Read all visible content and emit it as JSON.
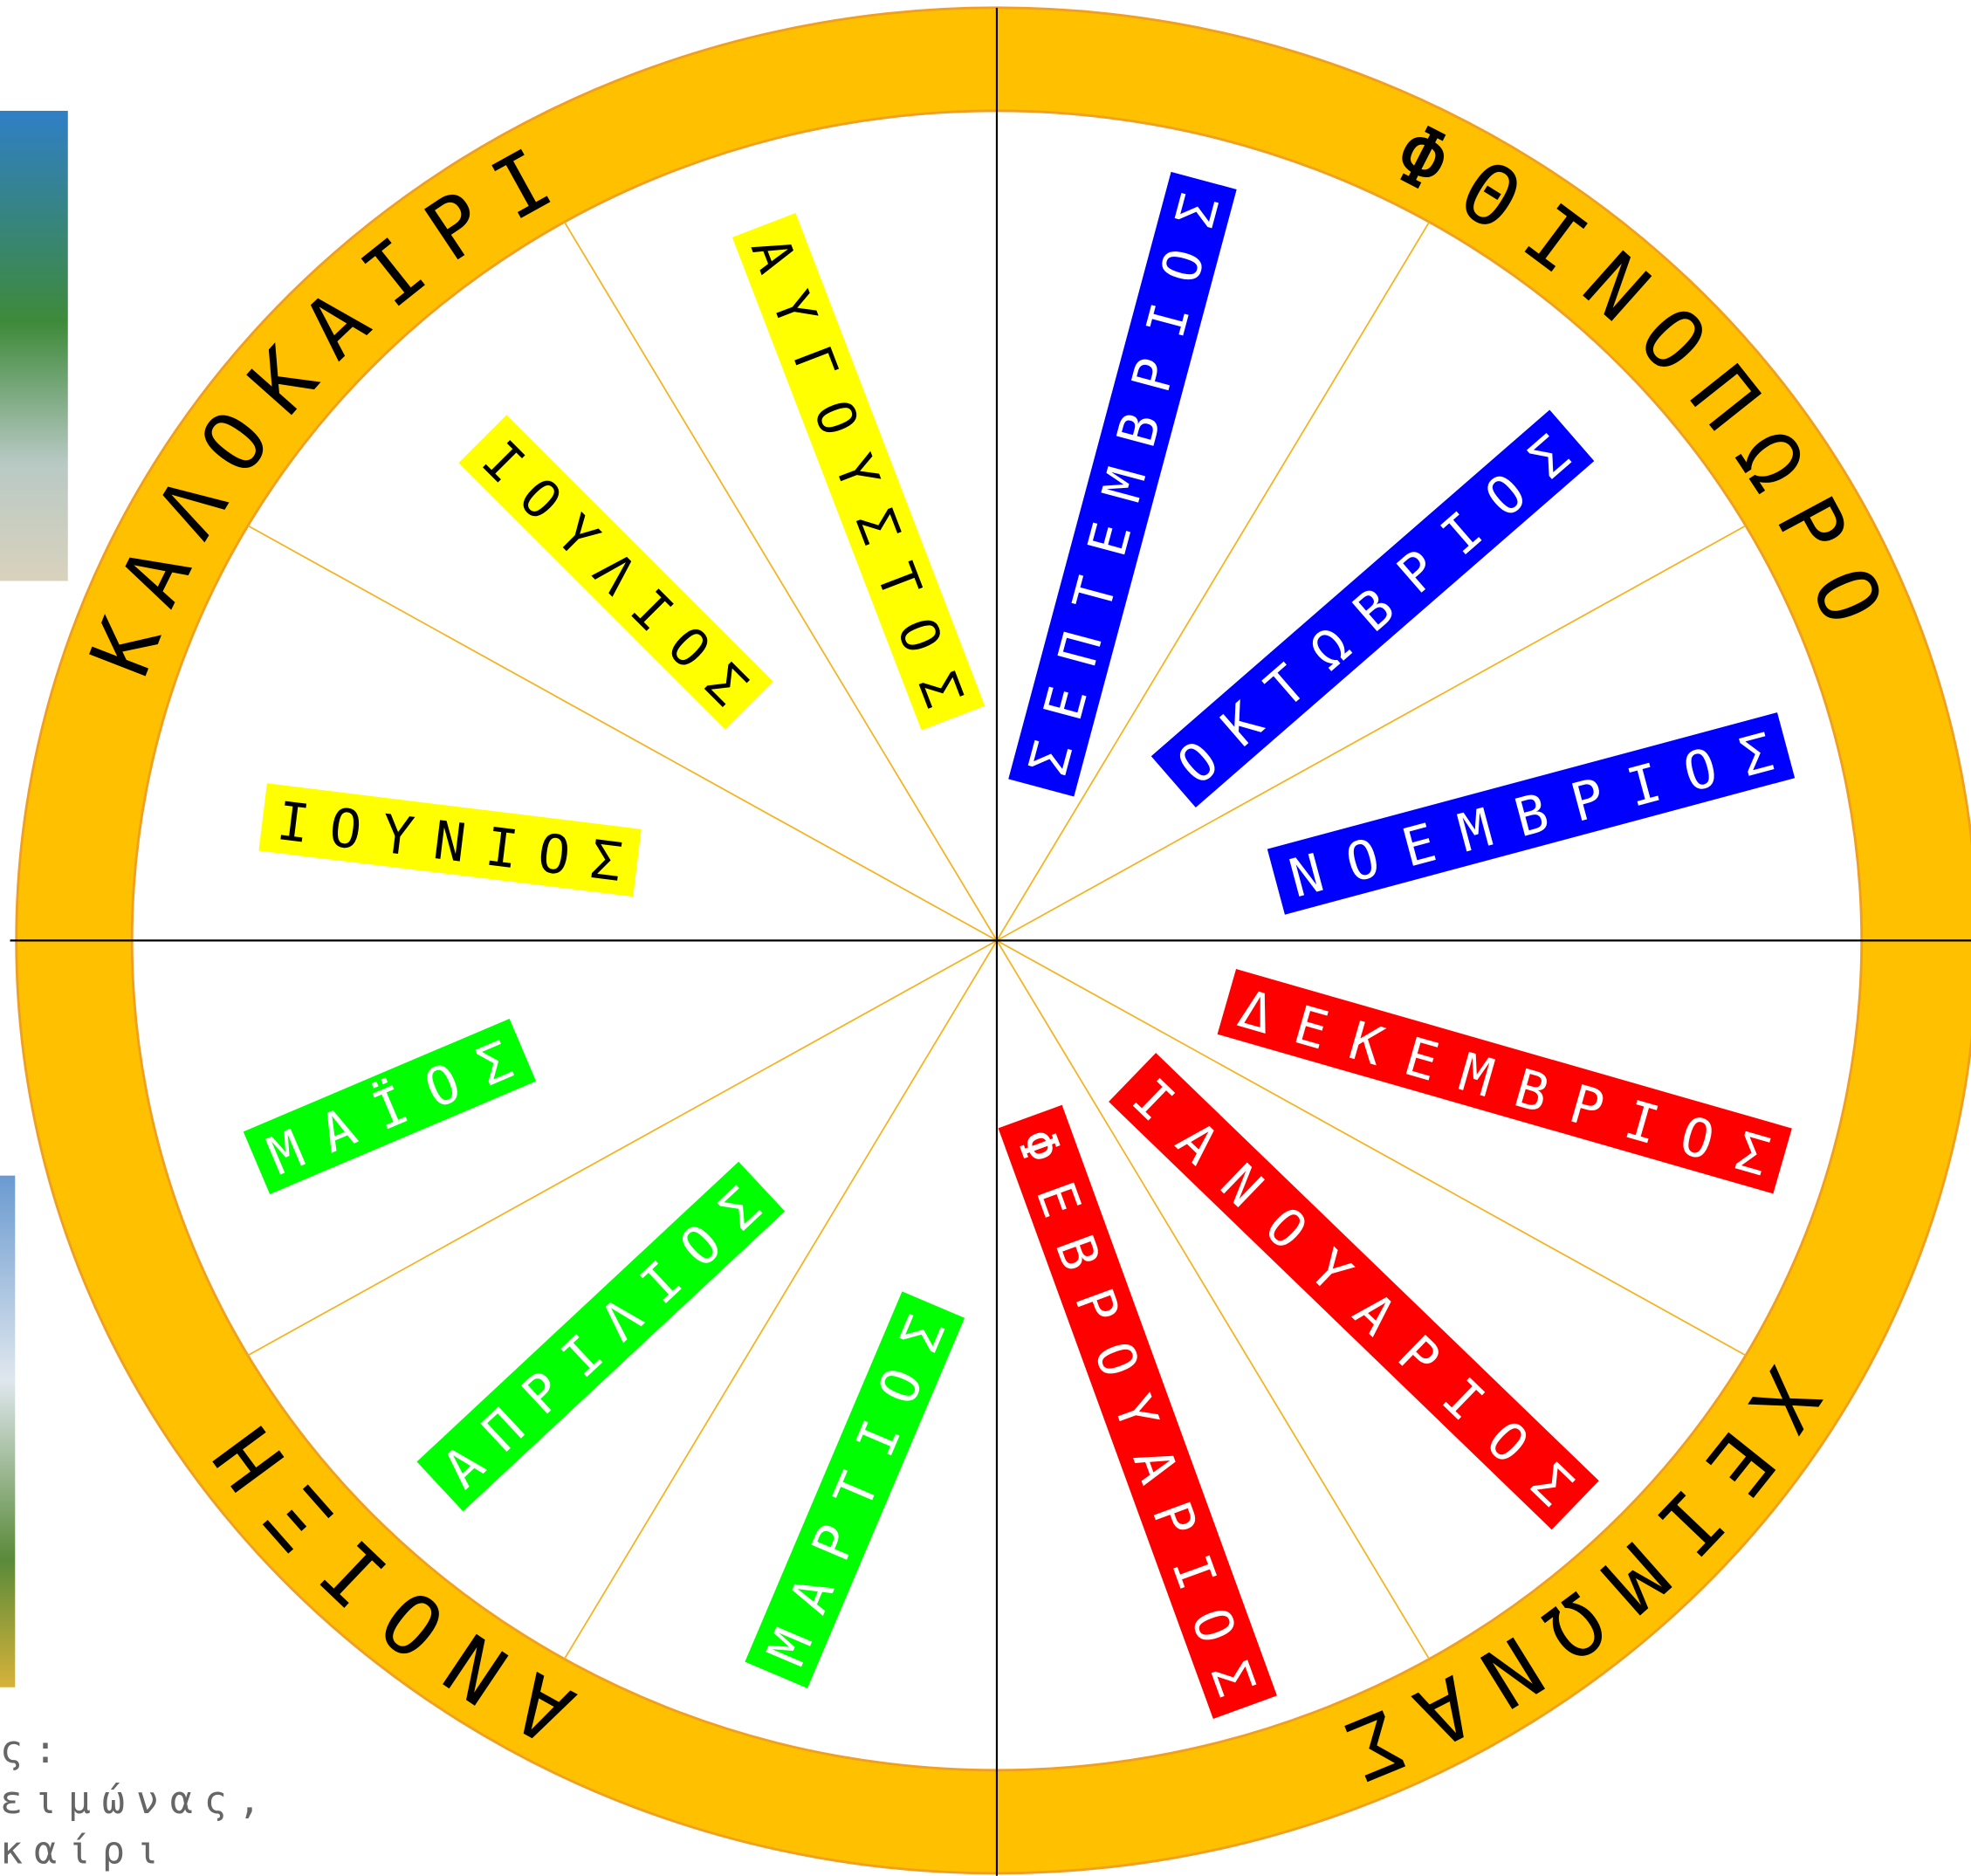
{
  "wheel": {
    "seasons": [
      {
        "label": "ΚΑΛΟΚΑΙΡΙ",
        "color": "#ffff00",
        "text_color": "#000000",
        "months": [
          "ΙΟΥΝΙΟΣ",
          "ΙΟΥΛΙΟΣ",
          "ΑΥΓΟΥΣΤΟΣ"
        ]
      },
      {
        "label": "ΦΘΙΝΟΠΩΡΟ",
        "color": "#0000ff",
        "text_color": "#ffffff",
        "months": [
          "ΣΕΠΤΕΜΒΡΙΟΣ",
          "ΟΚΤΩΒΡΙΟΣ",
          "ΝΟΕΜΒΡΙΟΣ"
        ]
      },
      {
        "label": "ΧΕΙΜΩΝΑΣ",
        "color": "#ff0000",
        "text_color": "#ffffff",
        "months": [
          "ΔΕΚΕΜΒΡΙΟΣ",
          "ΙΑΝΟΥΑΡΙΟΣ",
          "ΦΕΒΡΟΥΑΡΙΟΣ"
        ]
      },
      {
        "label": "ΑΝΟΙΞΗ",
        "color": "#00ff00",
        "text_color": "#ffffff",
        "months": [
          "ΜΑΡΤΙΟΣ",
          "ΑΠΡΙΛΙΟΣ",
          "ΜΑΪΟΣ"
        ]
      }
    ]
  },
  "side_note": {
    "lines": [
      "ς:",
      "ειμώνας,",
      "καίρι"
    ]
  }
}
